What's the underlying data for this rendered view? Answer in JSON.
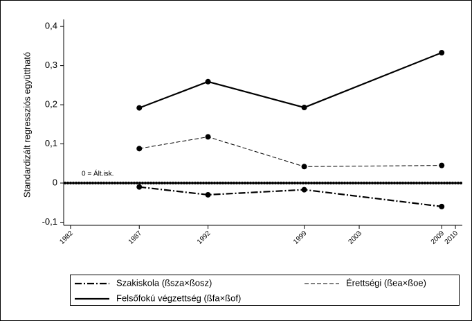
{
  "chart_data": {
    "type": "line",
    "ylabel": "Standardizált regressziós együttható",
    "annotation": "0 = Ált.isk.",
    "reference_line": 0,
    "x": [
      1987,
      1992,
      1999,
      2009
    ],
    "series": [
      {
        "name": "Szakiskola (ßsza×ßosz)",
        "color": "#000000",
        "style": "dashdot",
        "values": [
          -0.01,
          -0.03,
          -0.017,
          -0.06
        ]
      },
      {
        "name": "Érettségi (ßea×ßoe)",
        "color": "#000000",
        "style": "dashed",
        "values": [
          0.088,
          0.118,
          0.042,
          0.045
        ]
      },
      {
        "name": "Felsőfokú végzettség (ßfa×ßof)",
        "color": "#000000",
        "style": "solid",
        "values": [
          0.192,
          0.259,
          0.193,
          0.333
        ]
      }
    ],
    "xlim": [
      1981.5,
      2010.5
    ],
    "xticks": [
      1982,
      1987,
      1992,
      1999,
      2003,
      2009,
      2010
    ],
    "ylim": [
      -0.108,
      0.418
    ],
    "yticks": [
      {
        "value": -0.1,
        "label": "-0,1"
      },
      0,
      {
        "value": 0.1,
        "label": "0,1"
      },
      {
        "value": 0.2,
        "label": "0,2"
      },
      {
        "value": 0.3,
        "label": "0,3"
      },
      {
        "value": 0.4,
        "label": "0,4"
      }
    ]
  }
}
